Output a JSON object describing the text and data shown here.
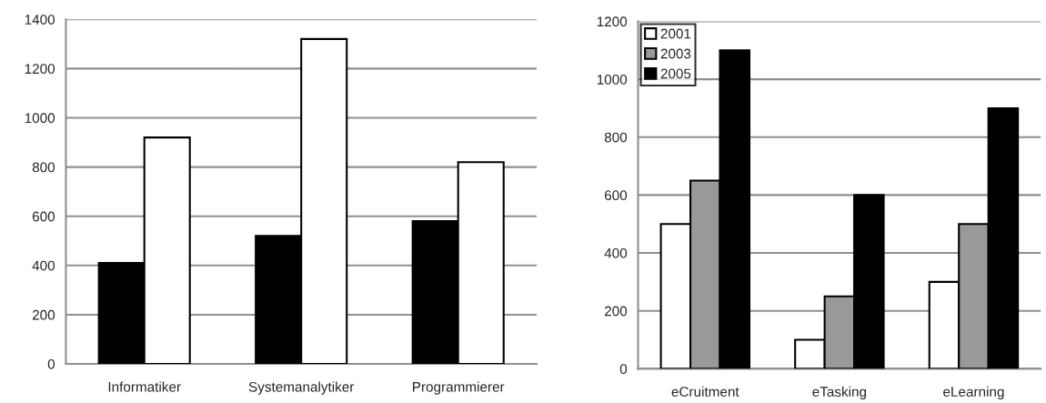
{
  "chart_data": [
    {
      "type": "bar",
      "categories": [
        "Informatiker",
        "Systemanalytiker",
        "Programmierer"
      ],
      "series": [
        {
          "color": "#000000",
          "values": [
            410,
            520,
            580
          ]
        },
        {
          "color": "#ffffff",
          "values": [
            920,
            1320,
            820
          ]
        }
      ],
      "ylim": [
        0,
        1400
      ],
      "yticks": [
        0,
        200,
        400,
        600,
        800,
        1000,
        1200,
        1400
      ],
      "grid": "y",
      "legend": false
    },
    {
      "type": "bar",
      "categories": [
        "eCruitment",
        "eTasking",
        "eLearning"
      ],
      "series": [
        {
          "name": "2001",
          "color": "#ffffff",
          "values": [
            500,
            100,
            300
          ]
        },
        {
          "name": "2003",
          "color": "#999999",
          "values": [
            650,
            250,
            500
          ]
        },
        {
          "name": "2005",
          "color": "#000000",
          "values": [
            1100,
            600,
            900
          ]
        }
      ],
      "ylim": [
        0,
        1200
      ],
      "yticks": [
        0,
        200,
        400,
        600,
        800,
        1000,
        1200
      ],
      "grid": "y",
      "legend": "top left"
    }
  ]
}
